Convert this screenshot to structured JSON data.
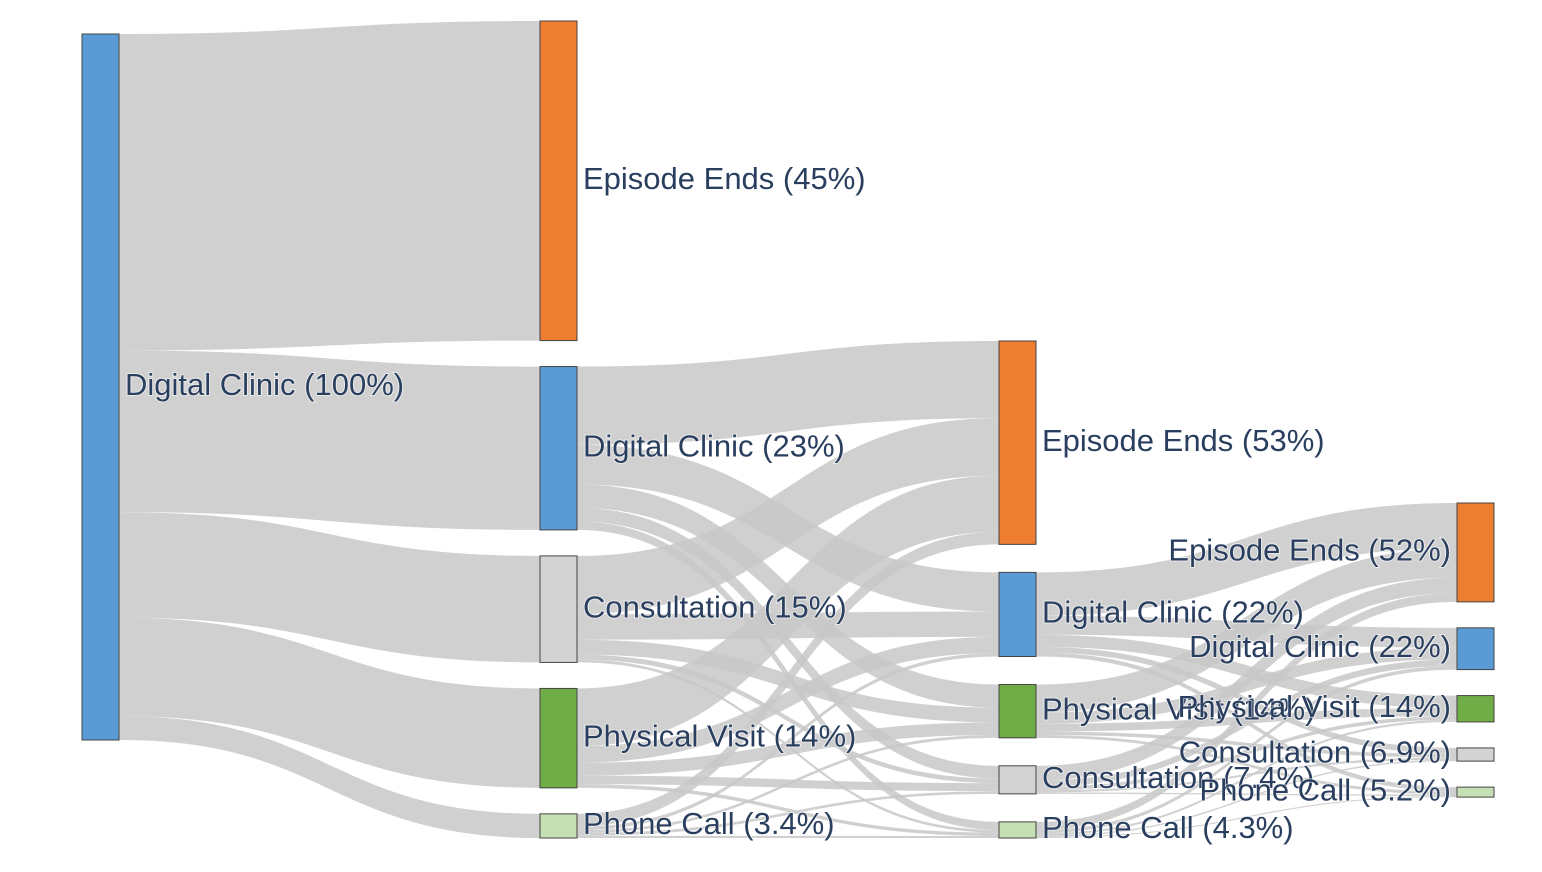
{
  "colors": {
    "episode_ends": "#ed7d31",
    "digital_clinic": "#5b9bd5",
    "consultation": "#d3d3d3",
    "physical_visit": "#70ad47",
    "phone_call": "#c5e0b4",
    "link": "#c8c8c8",
    "label": "#2a3f5f"
  },
  "chart_data": {
    "type": "sankey",
    "unit": "percent of episodes",
    "stages": 4,
    "nodes": [
      {
        "id": "s0_dc",
        "stage": 0,
        "label": "Digital Clinic (100%)",
        "value": 100,
        "color_key": "digital_clinic"
      },
      {
        "id": "s1_ee",
        "stage": 1,
        "label": "Episode Ends (45%)",
        "value": 45,
        "color_key": "episode_ends"
      },
      {
        "id": "s1_dc",
        "stage": 1,
        "label": "Digital Clinic (23%)",
        "value": 23,
        "color_key": "digital_clinic"
      },
      {
        "id": "s1_co",
        "stage": 1,
        "label": "Consultation (15%)",
        "value": 15,
        "color_key": "consultation"
      },
      {
        "id": "s1_pv",
        "stage": 1,
        "label": "Physical Visit (14%)",
        "value": 14,
        "color_key": "physical_visit"
      },
      {
        "id": "s1_pc",
        "stage": 1,
        "label": "Phone Call (3.4%)",
        "value": 3.4,
        "color_key": "phone_call"
      },
      {
        "id": "s2_ee",
        "stage": 2,
        "label": "Episode Ends (53%)",
        "value": 29,
        "color_key": "episode_ends"
      },
      {
        "id": "s2_dc",
        "stage": 2,
        "label": "Digital Clinic (22%)",
        "value": 12,
        "color_key": "digital_clinic"
      },
      {
        "id": "s2_pv",
        "stage": 2,
        "label": "Physical Visit (14%)",
        "value": 7.6,
        "color_key": "physical_visit"
      },
      {
        "id": "s2_co",
        "stage": 2,
        "label": "Consultation (7.4%)",
        "value": 4,
        "color_key": "consultation"
      },
      {
        "id": "s2_pc",
        "stage": 2,
        "label": "Phone Call (4.3%)",
        "value": 2.3,
        "color_key": "phone_call"
      },
      {
        "id": "s3_ee",
        "stage": 3,
        "label": "Episode Ends (52%)",
        "value": 13.5,
        "color_key": "episode_ends"
      },
      {
        "id": "s3_dc",
        "stage": 3,
        "label": "Digital Clinic (22%)",
        "value": 5.7,
        "color_key": "digital_clinic"
      },
      {
        "id": "s3_pv",
        "stage": 3,
        "label": "Physical Visit (14%)",
        "value": 3.6,
        "color_key": "physical_visit"
      },
      {
        "id": "s3_co",
        "stage": 3,
        "label": "Consultation (6.9%)",
        "value": 1.8,
        "color_key": "consultation"
      },
      {
        "id": "s3_pc",
        "stage": 3,
        "label": "Phone Call (5.2%)",
        "value": 1.35,
        "color_key": "phone_call"
      }
    ],
    "links": [
      {
        "source": "s0_dc",
        "target": "s1_ee",
        "value": 45
      },
      {
        "source": "s0_dc",
        "target": "s1_dc",
        "value": 23
      },
      {
        "source": "s0_dc",
        "target": "s1_co",
        "value": 15
      },
      {
        "source": "s0_dc",
        "target": "s1_pv",
        "value": 14
      },
      {
        "source": "s0_dc",
        "target": "s1_pc",
        "value": 3.4
      },
      {
        "source": "s1_dc",
        "target": "s2_ee",
        "value": 11
      },
      {
        "source": "s1_dc",
        "target": "s2_dc",
        "value": 5.6
      },
      {
        "source": "s1_dc",
        "target": "s2_pv",
        "value": 3.3
      },
      {
        "source": "s1_dc",
        "target": "s2_co",
        "value": 1.9
      },
      {
        "source": "s1_dc",
        "target": "s2_pc",
        "value": 1.2
      },
      {
        "source": "s1_co",
        "target": "s2_ee",
        "value": 8.2
      },
      {
        "source": "s1_co",
        "target": "s2_dc",
        "value": 3.6
      },
      {
        "source": "s1_co",
        "target": "s2_pv",
        "value": 2.1
      },
      {
        "source": "s1_co",
        "target": "s2_co",
        "value": 0.7
      },
      {
        "source": "s1_co",
        "target": "s2_pc",
        "value": 0.4
      },
      {
        "source": "s1_pv",
        "target": "s2_ee",
        "value": 8
      },
      {
        "source": "s1_pv",
        "target": "s2_dc",
        "value": 2.3
      },
      {
        "source": "s1_pv",
        "target": "s2_pv",
        "value": 1.8
      },
      {
        "source": "s1_pv",
        "target": "s2_co",
        "value": 1.2
      },
      {
        "source": "s1_pv",
        "target": "s2_pc",
        "value": 0.5
      },
      {
        "source": "s1_pc",
        "target": "s2_ee",
        "value": 1.8
      },
      {
        "source": "s1_pc",
        "target": "s2_dc",
        "value": 0.5
      },
      {
        "source": "s1_pc",
        "target": "s2_pv",
        "value": 0.4
      },
      {
        "source": "s1_pc",
        "target": "s2_co",
        "value": 0.4
      },
      {
        "source": "s1_pc",
        "target": "s2_pc",
        "value": 0.3
      },
      {
        "source": "s2_dc",
        "target": "s3_ee",
        "value": 6.2
      },
      {
        "source": "s2_dc",
        "target": "s3_dc",
        "value": 2.7
      },
      {
        "source": "s2_dc",
        "target": "s3_pv",
        "value": 1.7
      },
      {
        "source": "s2_dc",
        "target": "s3_co",
        "value": 0.8
      },
      {
        "source": "s2_dc",
        "target": "s3_pc",
        "value": 0.6
      },
      {
        "source": "s2_pv",
        "target": "s3_ee",
        "value": 4
      },
      {
        "source": "s2_pv",
        "target": "s3_dc",
        "value": 1.6
      },
      {
        "source": "s2_pv",
        "target": "s3_pv",
        "value": 1.1
      },
      {
        "source": "s2_pv",
        "target": "s3_co",
        "value": 0.5
      },
      {
        "source": "s2_pv",
        "target": "s3_pc",
        "value": 0.4
      },
      {
        "source": "s2_co",
        "target": "s3_ee",
        "value": 2.1
      },
      {
        "source": "s2_co",
        "target": "s3_dc",
        "value": 0.9
      },
      {
        "source": "s2_co",
        "target": "s3_pv",
        "value": 0.5
      },
      {
        "source": "s2_co",
        "target": "s3_co",
        "value": 0.3
      },
      {
        "source": "s2_co",
        "target": "s3_pc",
        "value": 0.2
      },
      {
        "source": "s2_pc",
        "target": "s3_ee",
        "value": 1.2
      },
      {
        "source": "s2_pc",
        "target": "s3_dc",
        "value": 0.5
      },
      {
        "source": "s2_pc",
        "target": "s3_pv",
        "value": 0.3
      },
      {
        "source": "s2_pc",
        "target": "s3_co",
        "value": 0.2
      },
      {
        "source": "s2_pc",
        "target": "s3_pc",
        "value": 0.15
      }
    ]
  }
}
